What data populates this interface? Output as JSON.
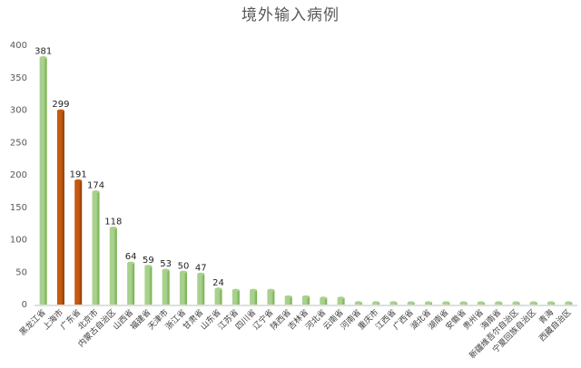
{
  "chart_data": {
    "type": "bar",
    "title": "境外输入病例",
    "categories": [
      "黑龙江省",
      "上海市",
      "广东省",
      "北京市",
      "内蒙古自治区",
      "山西省",
      "福建省",
      "天津市",
      "浙江省",
      "甘肃省",
      "山东省",
      "江苏省",
      "四川省",
      "辽宁省",
      "陕西省",
      "吉林省",
      "河北省",
      "云南省",
      "河南省",
      "重庆市",
      "江西省",
      "广西省",
      "湖北省",
      "湖南省",
      "安徽省",
      "贵州省",
      "海南省",
      "新疆维吾尔自治区",
      "宁夏回族自治区",
      "青海",
      "西藏自治区"
    ],
    "values": [
      381,
      299,
      191,
      174,
      118,
      64,
      59,
      53,
      50,
      47,
      24,
      22,
      22,
      22,
      12,
      12,
      10,
      10,
      3,
      3,
      3,
      2,
      2,
      1,
      1,
      1,
      0,
      0,
      0,
      0,
      0
    ],
    "data_labels": [
      "381",
      "299",
      "191",
      "174",
      "118",
      "64",
      "59",
      "53",
      "50",
      "47",
      "24",
      "",
      "",
      "",
      "",
      "",
      "",
      "",
      "",
      "",
      "",
      "",
      "",
      "",
      "",
      "",
      "",
      "",
      "",
      "",
      ""
    ],
    "highlighted": [
      false,
      true,
      true,
      false,
      false,
      false,
      false,
      false,
      false,
      false,
      false,
      false,
      false,
      false,
      false,
      false,
      false,
      false,
      false,
      false,
      false,
      false,
      false,
      false,
      false,
      false,
      false,
      false,
      false,
      false,
      false
    ],
    "yticks": [
      "0",
      "50",
      "100",
      "150",
      "200",
      "250",
      "300",
      "350",
      "400"
    ],
    "ylim": [
      0,
      400
    ],
    "grid": false,
    "colors": {
      "normal": "#a9d18e",
      "normal_dark": "#70ad47",
      "highlight": "#c55a11",
      "highlight_dark": "#843c0c",
      "axis": "#bfbfbf"
    }
  }
}
